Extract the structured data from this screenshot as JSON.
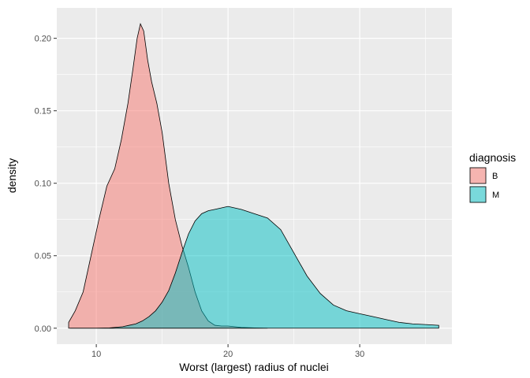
{
  "chart_data": {
    "type": "area",
    "xlabel": "Worst (largest) radius of nuclei",
    "ylabel": "density",
    "xlim": [
      7,
      37
    ],
    "ylim": [
      -0.011,
      0.221
    ],
    "x_ticks": [
      10,
      20,
      30
    ],
    "x_tick_labels": [
      "10",
      "20",
      "30"
    ],
    "y_ticks": [
      0.0,
      0.05,
      0.1,
      0.15,
      0.2
    ],
    "y_tick_labels": [
      "0.00",
      "0.05",
      "0.10",
      "0.15",
      "0.20"
    ],
    "grid": true,
    "legend": {
      "title": "diagnosis",
      "position": "right"
    },
    "series": [
      {
        "name": "B",
        "color": "#F8766D",
        "x": [
          7.9,
          8.4,
          9.0,
          9.6,
          10.2,
          10.8,
          11.4,
          11.9,
          12.4,
          12.8,
          13.1,
          13.35,
          13.6,
          13.9,
          14.2,
          14.6,
          15.0,
          15.5,
          16.0,
          16.5,
          17.0,
          17.5,
          18.0,
          18.5,
          19.0,
          19.5,
          20.0,
          21.0,
          22.0,
          23.0
        ],
        "y": [
          0.004,
          0.012,
          0.025,
          0.05,
          0.075,
          0.098,
          0.11,
          0.13,
          0.155,
          0.18,
          0.2,
          0.21,
          0.205,
          0.185,
          0.17,
          0.155,
          0.135,
          0.1,
          0.075,
          0.057,
          0.042,
          0.025,
          0.012,
          0.005,
          0.002,
          0.0015,
          0.0015,
          0.0005,
          0.0002,
          0.0
        ]
      },
      {
        "name": "M",
        "color": "#00BFC4",
        "x": [
          8.0,
          9.0,
          10.0,
          11.0,
          12.0,
          12.5,
          13.0,
          13.5,
          14.0,
          14.5,
          15.0,
          15.5,
          16.0,
          16.5,
          17.0,
          17.5,
          18.0,
          18.5,
          19.0,
          20.0,
          21.0,
          22.0,
          23.0,
          24.0,
          25.0,
          26.0,
          27.0,
          28.0,
          29.0,
          30.0,
          31.0,
          32.0,
          33.0,
          34.0,
          35.0,
          36.0
        ],
        "y": [
          0.0,
          0.0,
          0.0,
          0.0002,
          0.001,
          0.002,
          0.003,
          0.005,
          0.008,
          0.012,
          0.018,
          0.026,
          0.038,
          0.052,
          0.065,
          0.074,
          0.079,
          0.081,
          0.082,
          0.084,
          0.082,
          0.079,
          0.076,
          0.068,
          0.052,
          0.036,
          0.024,
          0.016,
          0.012,
          0.01,
          0.008,
          0.006,
          0.004,
          0.003,
          0.0025,
          0.002
        ]
      }
    ]
  }
}
